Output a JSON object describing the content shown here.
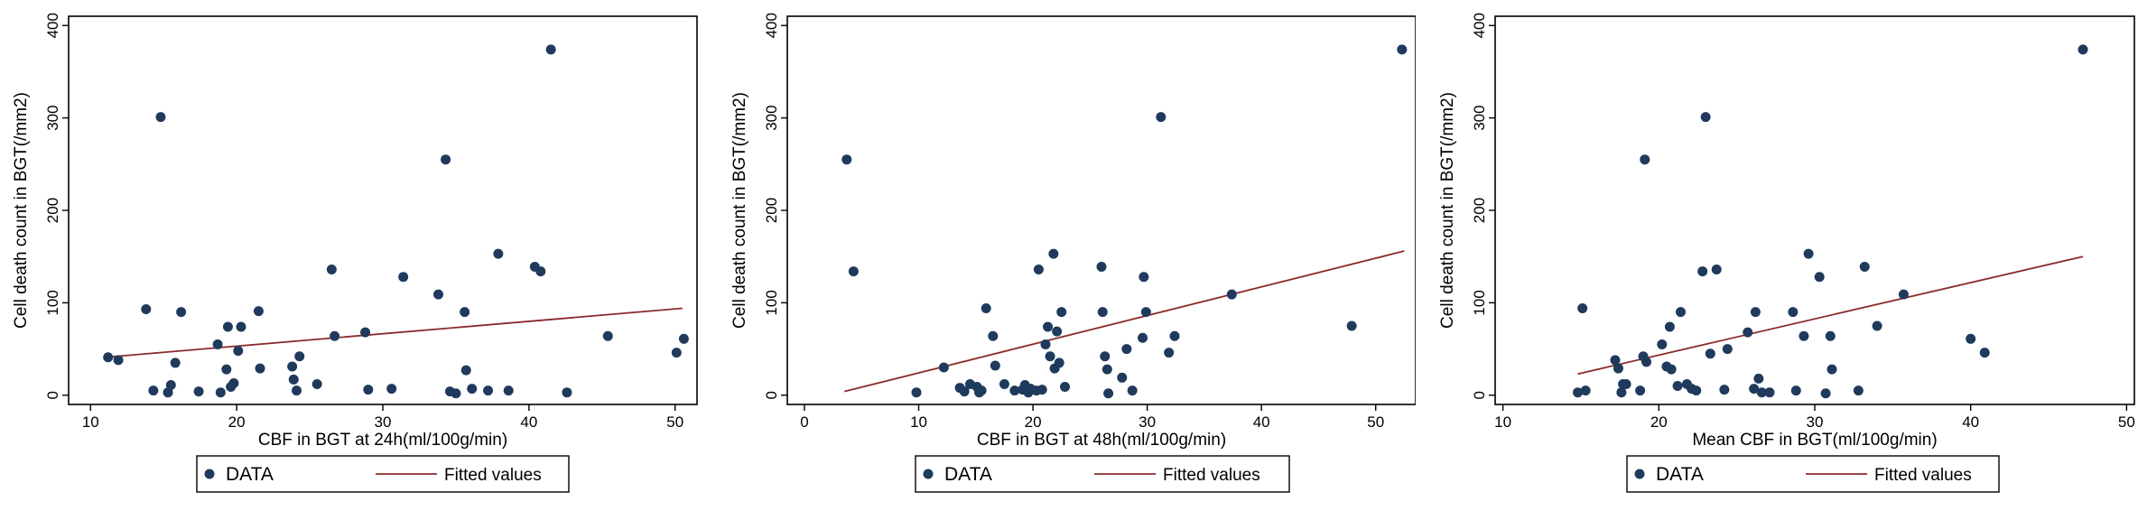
{
  "legend": {
    "data_label": "DATA",
    "fit_label": "Fitted values"
  },
  "colors": {
    "marker": "#1f3a5c",
    "fit_line": "#8b2a2a",
    "axis": "#000000"
  },
  "chart_data": [
    {
      "type": "scatter",
      "xlabel": "CBF in BGT at 24h(ml/100g/min)",
      "ylabel": "Cell death count in BGT(/mm2)",
      "xlim": [
        8.5,
        51.5
      ],
      "ylim": [
        -10,
        410
      ],
      "xticks": [
        10,
        20,
        30,
        40,
        50
      ],
      "yticks": [
        0,
        100,
        200,
        300,
        400
      ],
      "grid": false,
      "legend_position": "bottom",
      "fit": {
        "x": [
          11,
          50.5
        ],
        "y": [
          41,
          94
        ]
      },
      "points": [
        [
          11.2,
          41
        ],
        [
          11.9,
          38
        ],
        [
          13.8,
          93
        ],
        [
          14.3,
          5
        ],
        [
          14.8,
          301
        ],
        [
          15.3,
          3
        ],
        [
          15.5,
          11
        ],
        [
          15.8,
          35
        ],
        [
          16.2,
          90
        ],
        [
          17.4,
          4
        ],
        [
          18.7,
          55
        ],
        [
          18.9,
          3
        ],
        [
          19.3,
          28
        ],
        [
          19.4,
          74
        ],
        [
          19.6,
          9
        ],
        [
          19.8,
          13
        ],
        [
          20.1,
          48
        ],
        [
          20.3,
          74
        ],
        [
          21.5,
          91
        ],
        [
          21.6,
          29
        ],
        [
          23.8,
          31
        ],
        [
          23.9,
          17
        ],
        [
          24.1,
          5
        ],
        [
          24.3,
          42
        ],
        [
          25.5,
          12
        ],
        [
          26.5,
          136
        ],
        [
          26.7,
          64
        ],
        [
          28.8,
          68
        ],
        [
          29,
          6
        ],
        [
          30.6,
          7
        ],
        [
          31.4,
          128
        ],
        [
          33.8,
          109
        ],
        [
          34.3,
          255
        ],
        [
          34.6,
          4
        ],
        [
          35,
          2
        ],
        [
          35.6,
          90
        ],
        [
          35.7,
          27
        ],
        [
          36.1,
          7
        ],
        [
          37.2,
          5
        ],
        [
          37.9,
          153
        ],
        [
          38.6,
          5
        ],
        [
          40.4,
          139
        ],
        [
          40.8,
          134
        ],
        [
          41.5,
          374
        ],
        [
          42.6,
          3
        ],
        [
          45.4,
          64
        ],
        [
          50.1,
          46
        ],
        [
          50.6,
          61
        ]
      ]
    },
    {
      "type": "scatter",
      "xlabel": "CBF in BGT at 48h(ml/100g/min)",
      "ylabel": "Cell death count in BGT(/mm2)",
      "xlim": [
        -1.5,
        53.5
      ],
      "ylim": [
        -10,
        410
      ],
      "xticks": [
        0,
        10,
        20,
        30,
        40,
        50
      ],
      "yticks": [
        0,
        100,
        200,
        300,
        400
      ],
      "grid": false,
      "legend_position": "bottom",
      "fit": {
        "x": [
          3.5,
          52.5
        ],
        "y": [
          4,
          156
        ]
      },
      "points": [
        [
          3.7,
          255
        ],
        [
          4.3,
          134
        ],
        [
          9.8,
          3
        ],
        [
          12.2,
          30
        ],
        [
          13.6,
          8
        ],
        [
          14,
          4
        ],
        [
          14.5,
          12
        ],
        [
          15.1,
          9
        ],
        [
          15.3,
          3
        ],
        [
          15.5,
          5
        ],
        [
          15.9,
          94
        ],
        [
          16.5,
          64
        ],
        [
          16.7,
          32
        ],
        [
          17.5,
          12
        ],
        [
          18.4,
          5
        ],
        [
          19.1,
          6
        ],
        [
          19.3,
          11
        ],
        [
          19.6,
          3
        ],
        [
          19.8,
          7
        ],
        [
          20.3,
          5
        ],
        [
          20.5,
          136
        ],
        [
          20.8,
          6
        ],
        [
          21.1,
          55
        ],
        [
          21.3,
          74
        ],
        [
          21.5,
          42
        ],
        [
          21.8,
          153
        ],
        [
          21.9,
          29
        ],
        [
          22.1,
          69
        ],
        [
          22.3,
          35
        ],
        [
          22.5,
          90
        ],
        [
          22.8,
          9
        ],
        [
          26,
          139
        ],
        [
          26.1,
          90
        ],
        [
          26.3,
          42
        ],
        [
          26.5,
          28
        ],
        [
          26.6,
          2
        ],
        [
          27.8,
          19
        ],
        [
          28.2,
          50
        ],
        [
          28.7,
          5
        ],
        [
          29.6,
          62
        ],
        [
          29.7,
          128
        ],
        [
          29.9,
          90
        ],
        [
          31.2,
          301
        ],
        [
          31.9,
          46
        ],
        [
          32.4,
          64
        ],
        [
          37.4,
          109
        ],
        [
          47.9,
          75
        ],
        [
          52.3,
          374
        ]
      ]
    },
    {
      "type": "scatter",
      "xlabel": "Mean CBF in BGT(ml/100g/min)",
      "ylabel": "Cell death count in BGT(/mm2)",
      "xlim": [
        9.5,
        50.5
      ],
      "ylim": [
        -10,
        410
      ],
      "xticks": [
        10,
        20,
        30,
        40,
        50
      ],
      "yticks": [
        0,
        100,
        200,
        300,
        400
      ],
      "grid": false,
      "legend_position": "bottom",
      "fit": {
        "x": [
          14.8,
          47.2
        ],
        "y": [
          23,
          150
        ]
      },
      "points": [
        [
          14.8,
          3
        ],
        [
          15.1,
          94
        ],
        [
          15.3,
          5
        ],
        [
          17.2,
          38
        ],
        [
          17.4,
          29
        ],
        [
          17.6,
          3
        ],
        [
          17.7,
          12
        ],
        [
          17.9,
          12
        ],
        [
          18.8,
          5
        ],
        [
          19,
          42
        ],
        [
          19.1,
          255
        ],
        [
          19.2,
          36
        ],
        [
          20.2,
          55
        ],
        [
          20.5,
          31
        ],
        [
          20.7,
          74
        ],
        [
          20.8,
          28
        ],
        [
          21.2,
          10
        ],
        [
          21.4,
          90
        ],
        [
          21.8,
          12
        ],
        [
          22.1,
          7
        ],
        [
          22.4,
          5
        ],
        [
          22.8,
          134
        ],
        [
          23,
          301
        ],
        [
          23.3,
          45
        ],
        [
          23.7,
          136
        ],
        [
          24.2,
          6
        ],
        [
          24.4,
          50
        ],
        [
          25.7,
          68
        ],
        [
          26.1,
          7
        ],
        [
          26.2,
          90
        ],
        [
          26.4,
          18
        ],
        [
          26.6,
          3
        ],
        [
          27.1,
          3
        ],
        [
          28.6,
          90
        ],
        [
          28.8,
          5
        ],
        [
          29.3,
          64
        ],
        [
          29.6,
          153
        ],
        [
          30.3,
          128
        ],
        [
          30.7,
          2
        ],
        [
          31,
          64
        ],
        [
          31.1,
          28
        ],
        [
          32.8,
          5
        ],
        [
          33.2,
          139
        ],
        [
          34,
          75
        ],
        [
          35.7,
          109
        ],
        [
          40,
          61
        ],
        [
          40.9,
          46
        ],
        [
          47.2,
          374
        ]
      ]
    }
  ]
}
